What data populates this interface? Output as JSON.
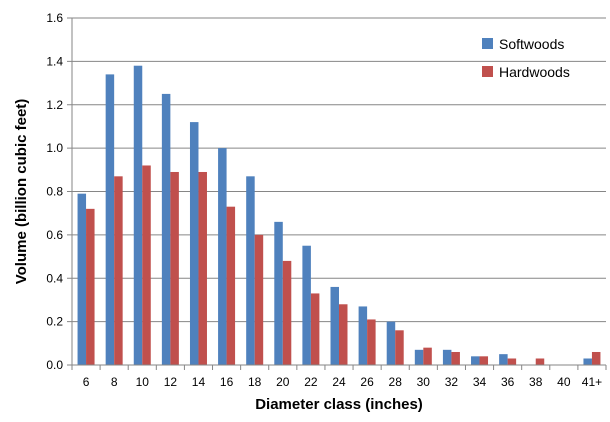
{
  "chart_data": {
    "type": "bar",
    "title": "",
    "xlabel": "Diameter class (inches)",
    "ylabel": "Volume (billion cubic feet)",
    "ylim": [
      0,
      1.6
    ],
    "yticks": [
      "0.0",
      "0.2",
      "0.4",
      "0.6",
      "0.8",
      "1.0",
      "1.2",
      "1.4",
      "1.6"
    ],
    "categories": [
      "6",
      "8",
      "10",
      "12",
      "14",
      "16",
      "18",
      "20",
      "22",
      "24",
      "26",
      "28",
      "30",
      "32",
      "34",
      "36",
      "38",
      "40",
      "41+"
    ],
    "series": [
      {
        "name": "Softwoods",
        "color": "#4F81BD",
        "values": [
          0.79,
          1.34,
          1.38,
          1.25,
          1.12,
          1.0,
          0.87,
          0.66,
          0.55,
          0.36,
          0.27,
          0.2,
          0.07,
          0.07,
          0.04,
          0.05,
          0.0,
          0.0,
          0.03
        ]
      },
      {
        "name": "Hardwoods",
        "color": "#C0504D",
        "values": [
          0.72,
          0.87,
          0.92,
          0.89,
          0.89,
          0.73,
          0.6,
          0.48,
          0.33,
          0.28,
          0.21,
          0.16,
          0.08,
          0.06,
          0.04,
          0.03,
          0.03,
          0.0,
          0.06
        ]
      }
    ],
    "grid": true,
    "legend_position": "top-right"
  }
}
